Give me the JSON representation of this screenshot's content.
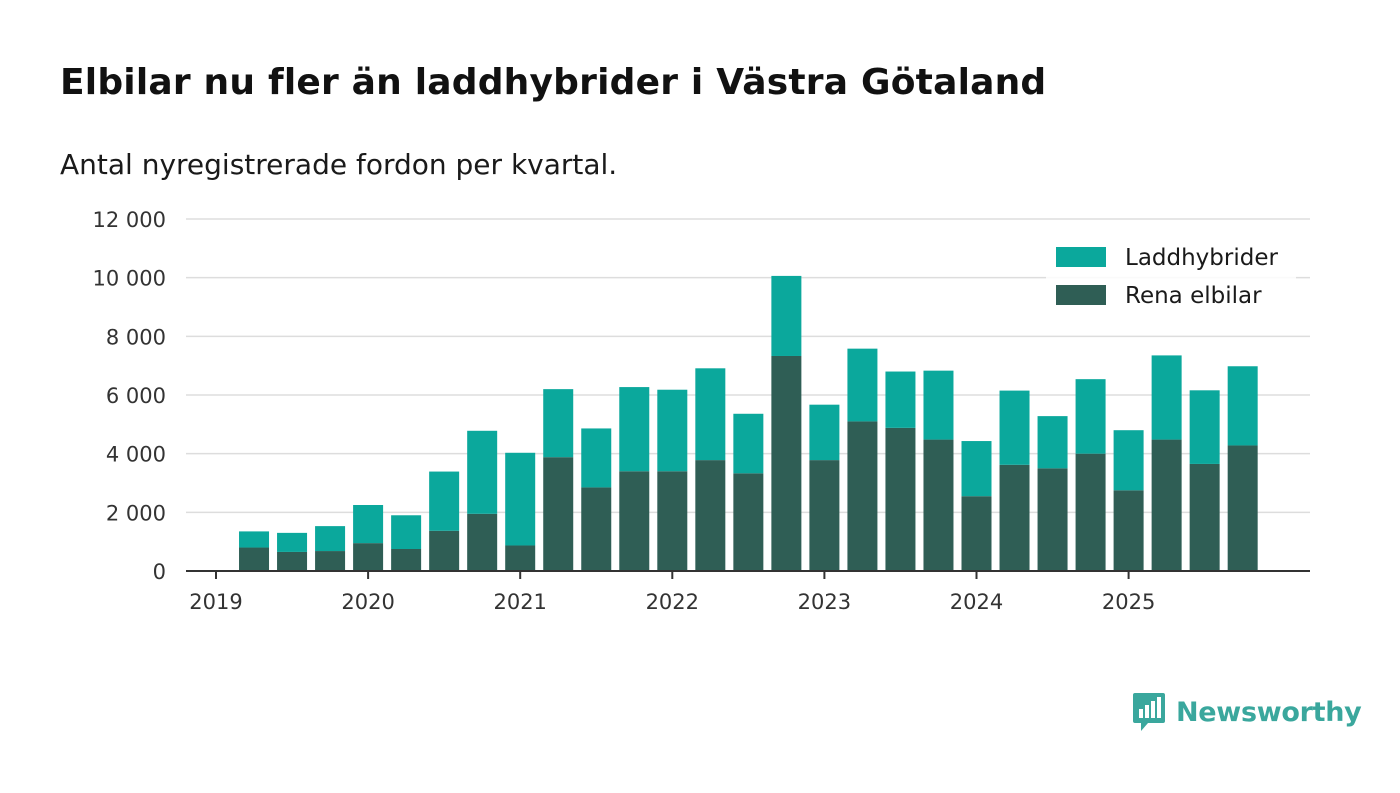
{
  "title": "Elbilar nu fler än laddhybrider i Västra Götaland",
  "subtitle": "Antal nyregistrerade fordon per kvartal.",
  "brand": {
    "name": "Newsworthy",
    "color": "#3aa79d"
  },
  "colors": {
    "plugin_hybrids": "#0ba89c",
    "pure_ev": "#2f5e55",
    "grid": "#dddddd",
    "axis": "#333333"
  },
  "chart_data": {
    "type": "bar",
    "stacked": true,
    "title": "Elbilar nu fler än laddhybrider i Västra Götaland",
    "subtitle": "Antal nyregistrerade fordon per kvartal.",
    "xlabel": "",
    "ylabel": "",
    "ylim": [
      0,
      12000
    ],
    "yticks": [
      0,
      2000,
      4000,
      6000,
      8000,
      10000,
      12000
    ],
    "ytick_labels": [
      "0",
      "2 000",
      "4 000",
      "6 000",
      "8 000",
      "10 000",
      "12 000"
    ],
    "xticks": [
      "2019",
      "2020",
      "2021",
      "2022",
      "2023",
      "2024",
      "2025"
    ],
    "grid": true,
    "legend_position": "top-right",
    "categories": [
      "2019 Q2",
      "2019 Q3",
      "2019 Q4",
      "2020 Q1",
      "2020 Q2",
      "2020 Q3",
      "2020 Q4",
      "2021 Q1",
      "2021 Q2",
      "2021 Q3",
      "2021 Q4",
      "2022 Q1",
      "2022 Q2",
      "2022 Q3",
      "2022 Q4",
      "2023 Q1",
      "2023 Q2",
      "2023 Q3",
      "2023 Q4",
      "2024 Q1",
      "2024 Q2",
      "2024 Q3",
      "2024 Q4",
      "2025 Q1",
      "2025 Q2",
      "2025 Q3",
      "2025 Q4"
    ],
    "series": [
      {
        "name": "Rena elbilar",
        "values": [
          800,
          650,
          680,
          950,
          750,
          1370,
          1950,
          870,
          3880,
          2850,
          3400,
          3400,
          3780,
          3330,
          7330,
          3780,
          5100,
          4880,
          4480,
          2550,
          3620,
          3500,
          4000,
          2750,
          4480,
          3650,
          4280
        ]
      },
      {
        "name": "Laddhybrider",
        "values": [
          550,
          650,
          850,
          1300,
          1150,
          2020,
          2830,
          3160,
          2320,
          2010,
          2870,
          2780,
          3130,
          2030,
          2730,
          1890,
          2480,
          1920,
          2350,
          1880,
          2530,
          1780,
          2540,
          2050,
          2870,
          2510,
          2700
        ]
      }
    ],
    "legend": [
      "Laddhybrider",
      "Rena elbilar"
    ]
  }
}
